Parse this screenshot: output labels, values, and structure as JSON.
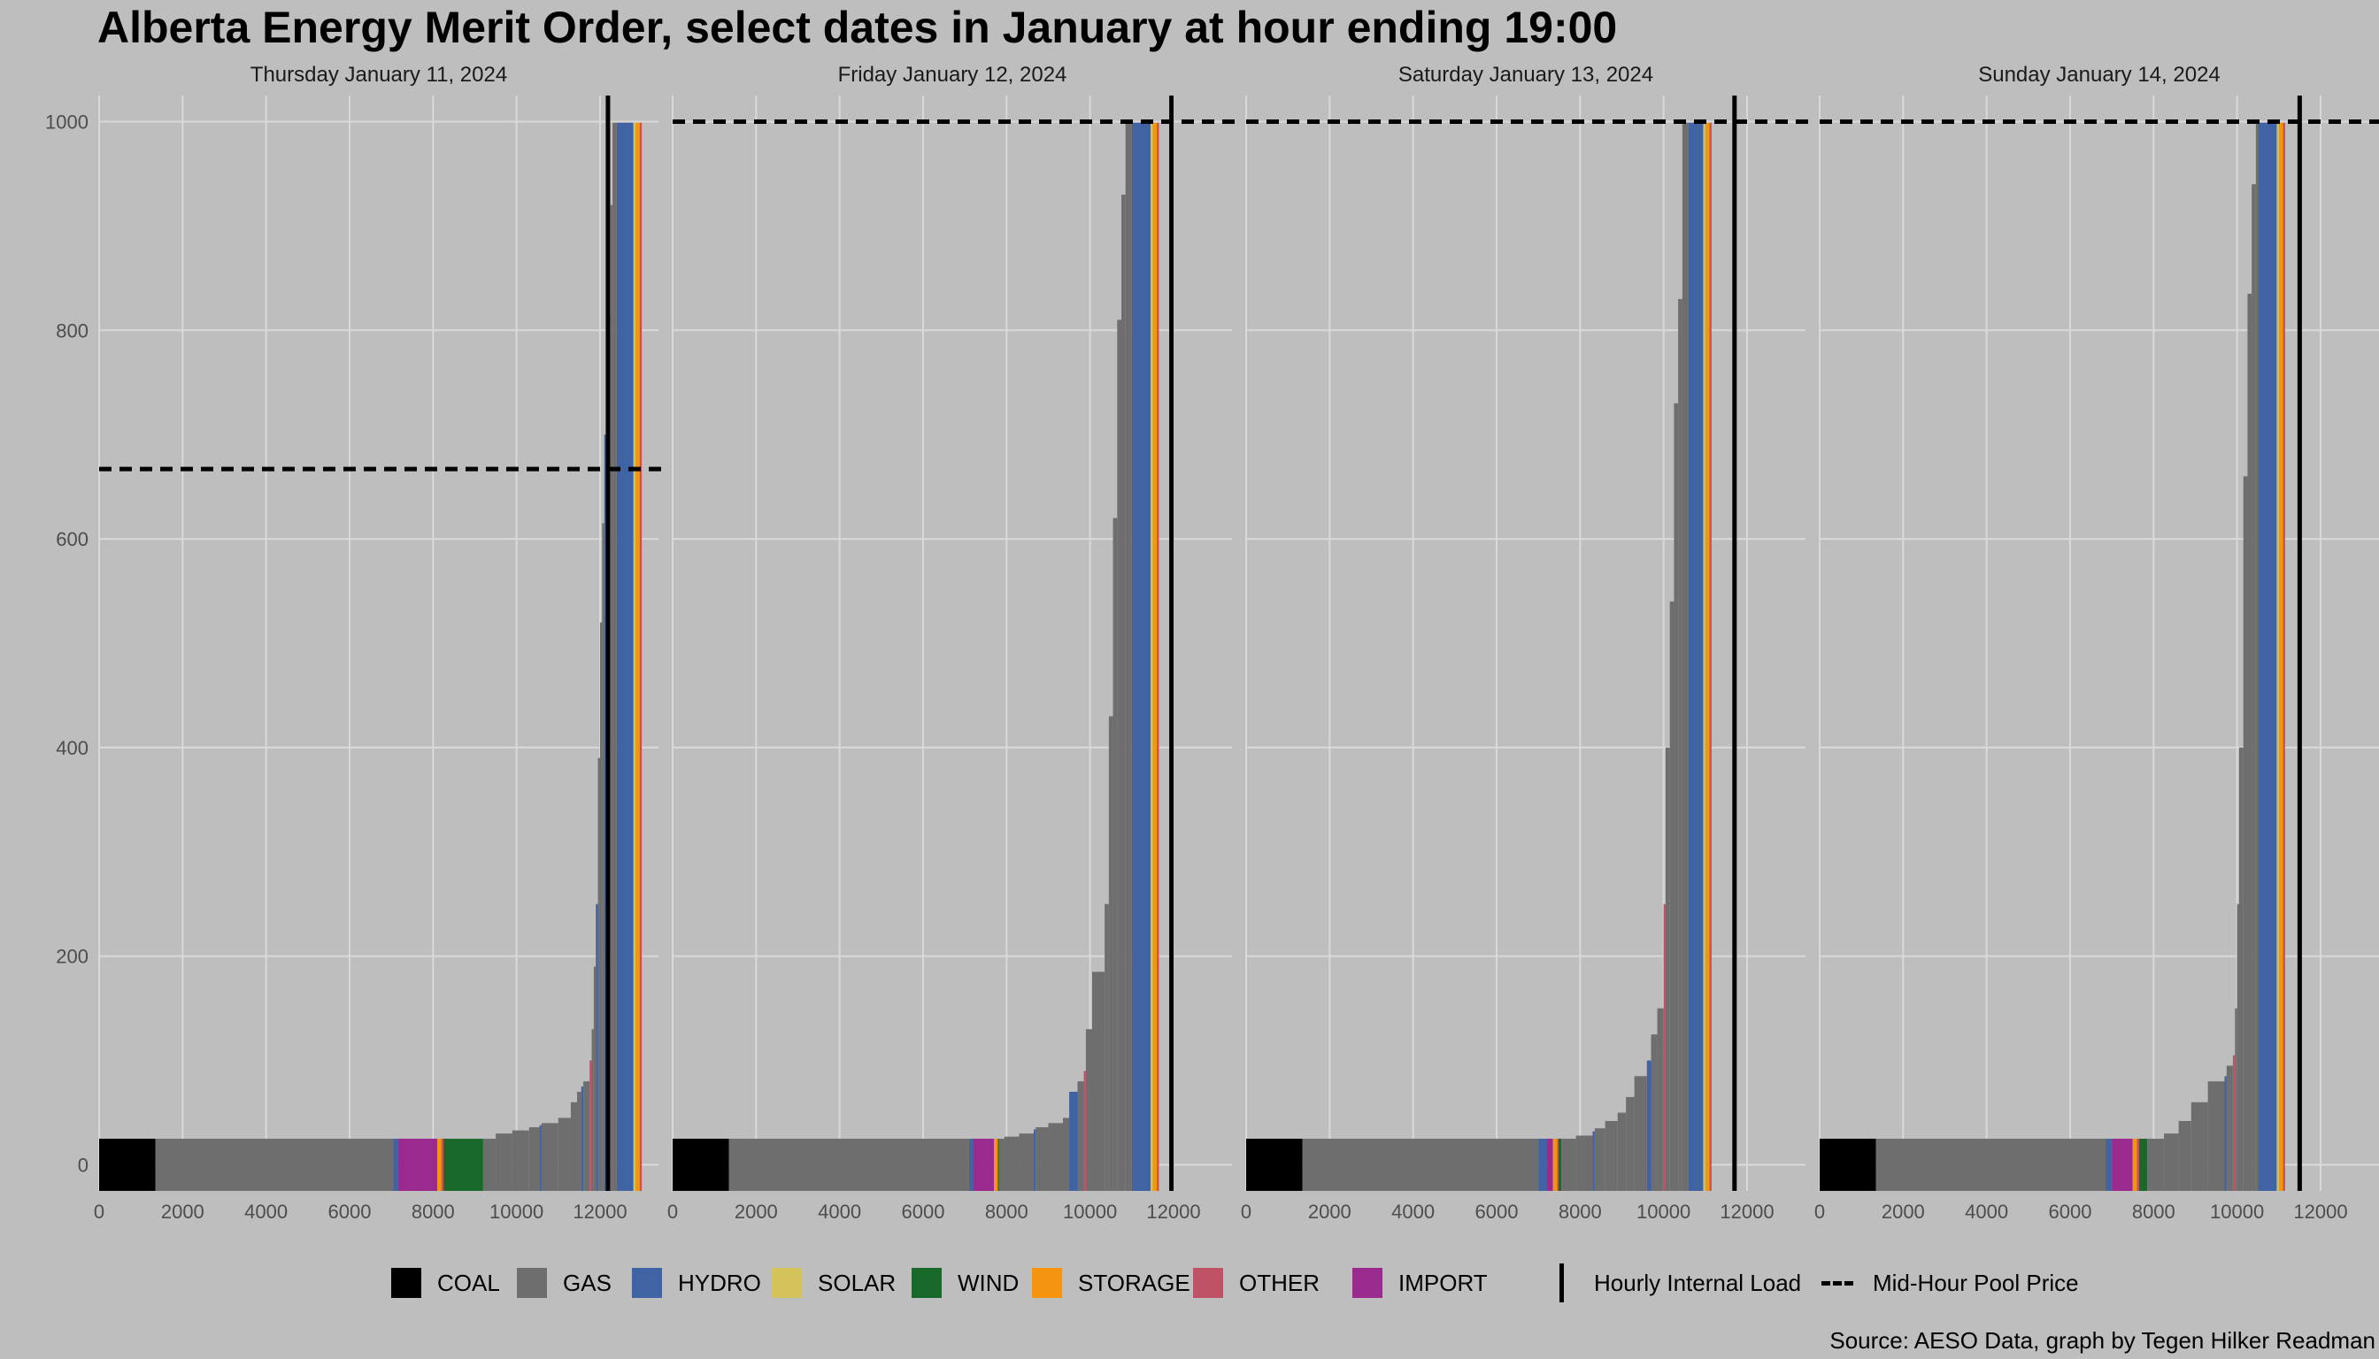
{
  "title": "Alberta Energy Merit Order, select dates in January at hour ending 19:00",
  "source": "Source: AESO Data, graph by Tegen Hilker Readman",
  "colors": {
    "background": "#bebebe",
    "grid": "#d9d9d9",
    "COAL": "#000000",
    "GAS": "#6e6e6e",
    "HYDRO": "#3f63a3",
    "SOLAR": "#d4c25a",
    "WIND": "#18692a",
    "STORAGE": "#f5950f",
    "OTHER": "#c05266",
    "IMPORT": "#9a2a8e"
  },
  "legend": {
    "fuels": [
      {
        "key": "COAL",
        "label": "COAL"
      },
      {
        "key": "GAS",
        "label": "GAS"
      },
      {
        "key": "HYDRO",
        "label": "HYDRO"
      },
      {
        "key": "SOLAR",
        "label": "SOLAR"
      },
      {
        "key": "WIND",
        "label": "WIND"
      },
      {
        "key": "STORAGE",
        "label": "STORAGE"
      },
      {
        "key": "OTHER",
        "label": "OTHER"
      },
      {
        "key": "IMPORT",
        "label": "IMPORT"
      }
    ],
    "load_label": "Hourly Internal Load",
    "price_label": "Mid-Hour Pool Price"
  },
  "chart_data": {
    "type": "area",
    "facet_by": "date",
    "xlim": [
      0,
      13400
    ],
    "ylim": [
      -25,
      1025
    ],
    "x_ticks": [
      0,
      2000,
      4000,
      6000,
      8000,
      10000,
      12000
    ],
    "y_ticks": [
      0,
      200,
      400,
      600,
      800,
      1000
    ],
    "grid": true,
    "legend_position": "bottom",
    "panels": [
      {
        "title": "Thursday January 11, 2024",
        "load": 12190,
        "pool_price": 667,
        "steps": [
          {
            "fuel": "COAL",
            "x0": 0,
            "x1": 1350,
            "y": 25
          },
          {
            "fuel": "GAS",
            "x0": 1350,
            "x1": 7050,
            "y": 25
          },
          {
            "fuel": "HYDRO",
            "x0": 7050,
            "x1": 7150,
            "y": 25
          },
          {
            "fuel": "IMPORT",
            "x0": 7150,
            "x1": 8100,
            "y": 25
          },
          {
            "fuel": "STORAGE",
            "x0": 8100,
            "x1": 8200,
            "y": 25
          },
          {
            "fuel": "OTHER",
            "x0": 8200,
            "x1": 8250,
            "y": 25
          },
          {
            "fuel": "WIND",
            "x0": 8250,
            "x1": 9200,
            "y": 25
          },
          {
            "fuel": "GAS",
            "x0": 9200,
            "x1": 9500,
            "y": 25
          },
          {
            "fuel": "GAS",
            "x0": 9500,
            "x1": 9900,
            "y": 30
          },
          {
            "fuel": "GAS",
            "x0": 9900,
            "x1": 10300,
            "y": 33
          },
          {
            "fuel": "GAS",
            "x0": 10300,
            "x1": 10550,
            "y": 36
          },
          {
            "fuel": "HYDRO",
            "x0": 10550,
            "x1": 10600,
            "y": 38
          },
          {
            "fuel": "GAS",
            "x0": 10600,
            "x1": 11000,
            "y": 40
          },
          {
            "fuel": "GAS",
            "x0": 11000,
            "x1": 11300,
            "y": 45
          },
          {
            "fuel": "GAS",
            "x0": 11300,
            "x1": 11450,
            "y": 60
          },
          {
            "fuel": "GAS",
            "x0": 11450,
            "x1": 11550,
            "y": 70
          },
          {
            "fuel": "HYDRO",
            "x0": 11550,
            "x1": 11600,
            "y": 75
          },
          {
            "fuel": "GAS",
            "x0": 11600,
            "x1": 11750,
            "y": 80
          },
          {
            "fuel": "OTHER",
            "x0": 11750,
            "x1": 11800,
            "y": 100
          },
          {
            "fuel": "GAS",
            "x0": 11800,
            "x1": 11850,
            "y": 130
          },
          {
            "fuel": "GAS",
            "x0": 11850,
            "x1": 11900,
            "y": 190
          },
          {
            "fuel": "HYDRO",
            "x0": 11900,
            "x1": 11950,
            "y": 250
          },
          {
            "fuel": "GAS",
            "x0": 11950,
            "x1": 12000,
            "y": 390
          },
          {
            "fuel": "GAS",
            "x0": 12000,
            "x1": 12050,
            "y": 520
          },
          {
            "fuel": "GAS",
            "x0": 12050,
            "x1": 12100,
            "y": 615
          },
          {
            "fuel": "HYDRO",
            "x0": 12100,
            "x1": 12150,
            "y": 700
          },
          {
            "fuel": "GAS",
            "x0": 12150,
            "x1": 12200,
            "y": 700
          },
          {
            "fuel": "GAS",
            "x0": 12200,
            "x1": 12250,
            "y": 815
          },
          {
            "fuel": "GAS",
            "x0": 12250,
            "x1": 12300,
            "y": 920
          },
          {
            "fuel": "GAS",
            "x0": 12300,
            "x1": 12400,
            "y": 999
          },
          {
            "fuel": "HYDRO",
            "x0": 12400,
            "x1": 12800,
            "y": 999
          },
          {
            "fuel": "SOLAR",
            "x0": 12800,
            "x1": 12850,
            "y": 999
          },
          {
            "fuel": "STORAGE",
            "x0": 12850,
            "x1": 12950,
            "y": 999
          },
          {
            "fuel": "OTHER",
            "x0": 12950,
            "x1": 13000,
            "y": 999
          }
        ]
      },
      {
        "title": "Friday January 12, 2024",
        "load": 11950,
        "pool_price": 999.99,
        "steps": [
          {
            "fuel": "COAL",
            "x0": 0,
            "x1": 1350,
            "y": 25
          },
          {
            "fuel": "GAS",
            "x0": 1350,
            "x1": 7100,
            "y": 25
          },
          {
            "fuel": "HYDRO",
            "x0": 7100,
            "x1": 7200,
            "y": 25
          },
          {
            "fuel": "IMPORT",
            "x0": 7200,
            "x1": 7700,
            "y": 25
          },
          {
            "fuel": "STORAGE",
            "x0": 7700,
            "x1": 7780,
            "y": 25
          },
          {
            "fuel": "OTHER",
            "x0": 7780,
            "x1": 7800,
            "y": 25
          },
          {
            "fuel": "WIND",
            "x0": 7800,
            "x1": 7820,
            "y": 25
          },
          {
            "fuel": "GAS",
            "x0": 7820,
            "x1": 7950,
            "y": 25
          },
          {
            "fuel": "GAS",
            "x0": 7950,
            "x1": 8300,
            "y": 27
          },
          {
            "fuel": "GAS",
            "x0": 8300,
            "x1": 8650,
            "y": 30
          },
          {
            "fuel": "HYDRO",
            "x0": 8650,
            "x1": 8700,
            "y": 34
          },
          {
            "fuel": "GAS",
            "x0": 8700,
            "x1": 9000,
            "y": 36
          },
          {
            "fuel": "GAS",
            "x0": 9000,
            "x1": 9350,
            "y": 40
          },
          {
            "fuel": "GAS",
            "x0": 9350,
            "x1": 9500,
            "y": 45
          },
          {
            "fuel": "HYDRO",
            "x0": 9500,
            "x1": 9700,
            "y": 70
          },
          {
            "fuel": "GAS",
            "x0": 9700,
            "x1": 9850,
            "y": 80
          },
          {
            "fuel": "OTHER",
            "x0": 9850,
            "x1": 9900,
            "y": 90
          },
          {
            "fuel": "GAS",
            "x0": 9900,
            "x1": 10050,
            "y": 130
          },
          {
            "fuel": "GAS",
            "x0": 10050,
            "x1": 10350,
            "y": 185
          },
          {
            "fuel": "GAS",
            "x0": 10350,
            "x1": 10450,
            "y": 250
          },
          {
            "fuel": "GAS",
            "x0": 10450,
            "x1": 10550,
            "y": 430
          },
          {
            "fuel": "GAS",
            "x0": 10550,
            "x1": 10650,
            "y": 620
          },
          {
            "fuel": "GAS",
            "x0": 10650,
            "x1": 10750,
            "y": 810
          },
          {
            "fuel": "GAS",
            "x0": 10750,
            "x1": 10850,
            "y": 930
          },
          {
            "fuel": "GAS",
            "x0": 10850,
            "x1": 11000,
            "y": 999
          },
          {
            "fuel": "HYDRO",
            "x0": 11000,
            "x1": 11450,
            "y": 999
          },
          {
            "fuel": "SOLAR",
            "x0": 11450,
            "x1": 11500,
            "y": 999
          },
          {
            "fuel": "STORAGE",
            "x0": 11500,
            "x1": 11600,
            "y": 999
          },
          {
            "fuel": "OTHER",
            "x0": 11600,
            "x1": 11650,
            "y": 999
          }
        ]
      },
      {
        "title": "Saturday January 13, 2024",
        "load": 11700,
        "pool_price": 999.99,
        "steps": [
          {
            "fuel": "COAL",
            "x0": 0,
            "x1": 1350,
            "y": 25
          },
          {
            "fuel": "GAS",
            "x0": 1350,
            "x1": 7000,
            "y": 25
          },
          {
            "fuel": "HYDRO",
            "x0": 7000,
            "x1": 7200,
            "y": 25
          },
          {
            "fuel": "IMPORT",
            "x0": 7200,
            "x1": 7350,
            "y": 25
          },
          {
            "fuel": "STORAGE",
            "x0": 7350,
            "x1": 7450,
            "y": 25
          },
          {
            "fuel": "OTHER",
            "x0": 7450,
            "x1": 7480,
            "y": 25
          },
          {
            "fuel": "WIND",
            "x0": 7480,
            "x1": 7550,
            "y": 25
          },
          {
            "fuel": "GAS",
            "x0": 7550,
            "x1": 7900,
            "y": 25
          },
          {
            "fuel": "GAS",
            "x0": 7900,
            "x1": 8300,
            "y": 28
          },
          {
            "fuel": "HYDRO",
            "x0": 8300,
            "x1": 8350,
            "y": 32
          },
          {
            "fuel": "GAS",
            "x0": 8350,
            "x1": 8600,
            "y": 35
          },
          {
            "fuel": "GAS",
            "x0": 8600,
            "x1": 8900,
            "y": 42
          },
          {
            "fuel": "GAS",
            "x0": 8900,
            "x1": 9100,
            "y": 50
          },
          {
            "fuel": "GAS",
            "x0": 9100,
            "x1": 9300,
            "y": 65
          },
          {
            "fuel": "GAS",
            "x0": 9300,
            "x1": 9600,
            "y": 85
          },
          {
            "fuel": "HYDRO",
            "x0": 9600,
            "x1": 9700,
            "y": 100
          },
          {
            "fuel": "GAS",
            "x0": 9700,
            "x1": 9850,
            "y": 125
          },
          {
            "fuel": "GAS",
            "x0": 9850,
            "x1": 10000,
            "y": 150
          },
          {
            "fuel": "OTHER",
            "x0": 10000,
            "x1": 10050,
            "y": 250
          },
          {
            "fuel": "GAS",
            "x0": 10050,
            "x1": 10150,
            "y": 400
          },
          {
            "fuel": "GAS",
            "x0": 10150,
            "x1": 10250,
            "y": 540
          },
          {
            "fuel": "GAS",
            "x0": 10250,
            "x1": 10350,
            "y": 730
          },
          {
            "fuel": "GAS",
            "x0": 10350,
            "x1": 10450,
            "y": 830
          },
          {
            "fuel": "GAS",
            "x0": 10450,
            "x1": 10600,
            "y": 999
          },
          {
            "fuel": "HYDRO",
            "x0": 10600,
            "x1": 10950,
            "y": 999
          },
          {
            "fuel": "SOLAR",
            "x0": 10950,
            "x1": 11000,
            "y": 999
          },
          {
            "fuel": "STORAGE",
            "x0": 11000,
            "x1": 11100,
            "y": 999
          },
          {
            "fuel": "OTHER",
            "x0": 11100,
            "x1": 11150,
            "y": 999
          }
        ]
      },
      {
        "title": "Sunday January 14, 2024",
        "load": 11500,
        "pool_price": 999.99,
        "steps": [
          {
            "fuel": "COAL",
            "x0": 0,
            "x1": 1350,
            "y": 25
          },
          {
            "fuel": "GAS",
            "x0": 1350,
            "x1": 6850,
            "y": 25
          },
          {
            "fuel": "HYDRO",
            "x0": 6850,
            "x1": 7000,
            "y": 25
          },
          {
            "fuel": "IMPORT",
            "x0": 7000,
            "x1": 7500,
            "y": 25
          },
          {
            "fuel": "STORAGE",
            "x0": 7500,
            "x1": 7600,
            "y": 25
          },
          {
            "fuel": "OTHER",
            "x0": 7600,
            "x1": 7650,
            "y": 25
          },
          {
            "fuel": "WIND",
            "x0": 7650,
            "x1": 7850,
            "y": 25
          },
          {
            "fuel": "GAS",
            "x0": 7850,
            "x1": 8250,
            "y": 25
          },
          {
            "fuel": "GAS",
            "x0": 8250,
            "x1": 8600,
            "y": 30
          },
          {
            "fuel": "GAS",
            "x0": 8600,
            "x1": 8900,
            "y": 42
          },
          {
            "fuel": "GAS",
            "x0": 8900,
            "x1": 9300,
            "y": 60
          },
          {
            "fuel": "GAS",
            "x0": 9300,
            "x1": 9700,
            "y": 80
          },
          {
            "fuel": "HYDRO",
            "x0": 9700,
            "x1": 9750,
            "y": 85
          },
          {
            "fuel": "GAS",
            "x0": 9750,
            "x1": 9900,
            "y": 95
          },
          {
            "fuel": "OTHER",
            "x0": 9900,
            "x1": 9950,
            "y": 105
          },
          {
            "fuel": "GAS",
            "x0": 9950,
            "x1": 10000,
            "y": 150
          },
          {
            "fuel": "GAS",
            "x0": 10000,
            "x1": 10050,
            "y": 250
          },
          {
            "fuel": "GAS",
            "x0": 10050,
            "x1": 10150,
            "y": 400
          },
          {
            "fuel": "GAS",
            "x0": 10150,
            "x1": 10250,
            "y": 660
          },
          {
            "fuel": "GAS",
            "x0": 10250,
            "x1": 10350,
            "y": 835
          },
          {
            "fuel": "GAS",
            "x0": 10350,
            "x1": 10450,
            "y": 940
          },
          {
            "fuel": "GAS",
            "x0": 10450,
            "x1": 10500,
            "y": 999
          },
          {
            "fuel": "HYDRO",
            "x0": 10500,
            "x1": 10950,
            "y": 999
          },
          {
            "fuel": "SOLAR",
            "x0": 10950,
            "x1": 11000,
            "y": 999
          },
          {
            "fuel": "STORAGE",
            "x0": 11000,
            "x1": 11100,
            "y": 999
          },
          {
            "fuel": "OTHER",
            "x0": 11100,
            "x1": 11150,
            "y": 999
          }
        ]
      }
    ]
  }
}
